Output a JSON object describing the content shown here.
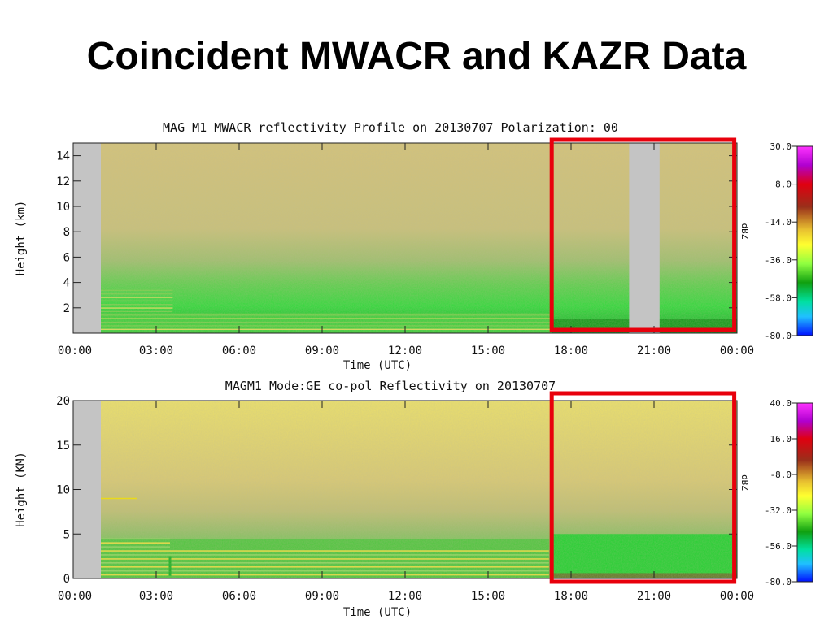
{
  "slide": {
    "title": "Coincident MWACR and KAZR Data"
  },
  "chart_data": [
    {
      "type": "heatmap",
      "title": "MAG M1 MWACR reflectivity Profile on 20130707 Polarization: 00",
      "xlabel": "Time (UTC)",
      "ylabel": "Height (km)",
      "x_ticks": [
        "00:00",
        "03:00",
        "06:00",
        "09:00",
        "12:00",
        "15:00",
        "18:00",
        "21:00",
        "00:00"
      ],
      "x_range_hours": [
        0,
        24
      ],
      "y_ticks": [
        2,
        4,
        6,
        8,
        10,
        12,
        14
      ],
      "ylim": [
        0,
        15
      ],
      "colorbar": {
        "label": "dBZ",
        "ticks": [
          "30.0",
          "8.0",
          "-14.0",
          "-36.0",
          "-58.0",
          "-80.0"
        ],
        "range": [
          -80,
          30
        ]
      },
      "no_data_intervals_hours": [
        [
          0,
          1.0
        ],
        [
          20.1,
          21.2
        ]
      ],
      "highlight_box_hours": [
        17.3,
        23.9
      ],
      "highlight_color": "#e8000c"
    },
    {
      "type": "heatmap",
      "title": "MAGM1 Mode:GE co-pol Reflectivity on 20130707",
      "xlabel": "Time (UTC)",
      "ylabel": "Height (KM)",
      "x_ticks": [
        "00:00",
        "03:00",
        "06:00",
        "09:00",
        "12:00",
        "15:00",
        "18:00",
        "21:00",
        "00:00"
      ],
      "x_range_hours": [
        0,
        24
      ],
      "y_ticks": [
        0,
        5,
        10,
        15,
        20
      ],
      "ylim": [
        0,
        20
      ],
      "colorbar": {
        "label": "dBZ",
        "ticks": [
          "40.0",
          "16.0",
          "-8.0",
          "-32.0",
          "-56.0",
          "-80.0"
        ],
        "range": [
          -80,
          40
        ]
      },
      "no_data_intervals_hours": [
        [
          0,
          1.0
        ]
      ],
      "highlight_box_hours": [
        17.3,
        23.9
      ],
      "highlight_color": "#e8000c"
    }
  ]
}
